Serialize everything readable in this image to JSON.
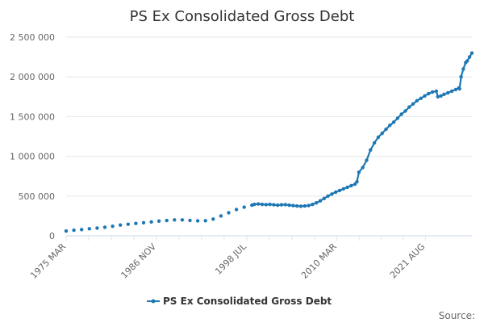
{
  "chart_data": {
    "type": "line",
    "title": "PS Ex Consolidated Gross Debt",
    "xlabel": "",
    "ylabel": "",
    "x_start": "1975 MAR",
    "x_end": "2021 AUG",
    "x_ticks": [
      "1975 MAR",
      "1986 NOV",
      "1998 JUL",
      "2010 MAR",
      "2021 AUG"
    ],
    "y_ticks": [
      "0",
      "500 000",
      "1 000 000",
      "1 500 000",
      "2 000 000",
      "2 500 000"
    ],
    "ylim": [
      0,
      2500000
    ],
    "grid": true,
    "legend_position": "bottom-center",
    "series": [
      {
        "name": "PS Ex Consolidated Gross Debt",
        "color": "#1f78b4",
        "points": [
          [
            1975.17,
            60000
          ],
          [
            1976.17,
            70000
          ],
          [
            1977.17,
            78000
          ],
          [
            1978.17,
            88000
          ],
          [
            1979.17,
            98000
          ],
          [
            1980.17,
            108000
          ],
          [
            1981.17,
            120000
          ],
          [
            1982.17,
            135000
          ],
          [
            1983.17,
            145000
          ],
          [
            1984.17,
            155000
          ],
          [
            1985.17,
            165000
          ],
          [
            1986.17,
            175000
          ],
          [
            1987.17,
            185000
          ],
          [
            1988.17,
            192000
          ],
          [
            1989.17,
            200000
          ],
          [
            1990.17,
            200000
          ],
          [
            1991.17,
            193000
          ],
          [
            1992.17,
            188000
          ],
          [
            1993.17,
            190000
          ],
          [
            1994.17,
            210000
          ],
          [
            1995.17,
            250000
          ],
          [
            1996.17,
            290000
          ],
          [
            1997.17,
            330000
          ],
          [
            1998.17,
            360000
          ],
          [
            1999.17,
            385000
          ],
          [
            1999.5,
            395000
          ],
          [
            2000.0,
            400000
          ],
          [
            2000.5,
            395000
          ],
          [
            2001.0,
            392000
          ],
          [
            2001.5,
            395000
          ],
          [
            2002.0,
            390000
          ],
          [
            2002.5,
            385000
          ],
          [
            2003.0,
            390000
          ],
          [
            2003.5,
            392000
          ],
          [
            2004.0,
            385000
          ],
          [
            2004.5,
            380000
          ],
          [
            2005.0,
            375000
          ],
          [
            2005.5,
            372000
          ],
          [
            2006.0,
            375000
          ],
          [
            2006.5,
            380000
          ],
          [
            2007.0,
            395000
          ],
          [
            2007.5,
            415000
          ],
          [
            2008.0,
            440000
          ],
          [
            2008.5,
            470000
          ],
          [
            2009.0,
            500000
          ],
          [
            2009.5,
            525000
          ],
          [
            2010.0,
            550000
          ],
          [
            2010.5,
            570000
          ],
          [
            2011.0,
            590000
          ],
          [
            2011.5,
            610000
          ],
          [
            2012.0,
            630000
          ],
          [
            2012.5,
            650000
          ],
          [
            2012.75,
            680000
          ],
          [
            2013.0,
            800000
          ],
          [
            2013.5,
            860000
          ],
          [
            2014.0,
            950000
          ],
          [
            2014.5,
            1080000
          ],
          [
            2015.0,
            1170000
          ],
          [
            2015.5,
            1240000
          ],
          [
            2016.0,
            1290000
          ],
          [
            2016.5,
            1340000
          ],
          [
            2017.0,
            1390000
          ],
          [
            2017.5,
            1430000
          ],
          [
            2018.0,
            1480000
          ],
          [
            2018.5,
            1530000
          ],
          [
            2019.0,
            1570000
          ],
          [
            2019.5,
            1620000
          ],
          [
            2020.0,
            1660000
          ],
          [
            2020.5,
            1700000
          ],
          [
            2021.0,
            1730000
          ],
          [
            2021.5,
            1760000
          ],
          [
            2022.0,
            1790000
          ],
          [
            2022.5,
            1810000
          ],
          [
            2023.0,
            1820000
          ],
          [
            2023.2,
            1750000
          ],
          [
            2023.6,
            1760000
          ],
          [
            2024.0,
            1780000
          ],
          [
            2024.5,
            1800000
          ],
          [
            2025.0,
            1820000
          ],
          [
            2025.5,
            1840000
          ],
          [
            2025.9,
            1860000
          ],
          [
            2026.0,
            1850000
          ],
          [
            2026.2,
            2000000
          ],
          [
            2026.5,
            2100000
          ],
          [
            2026.8,
            2180000
          ],
          [
            2027.0,
            2200000
          ],
          [
            2027.3,
            2250000
          ],
          [
            2027.6,
            2300000
          ]
        ]
      }
    ]
  },
  "source_label": "Source:"
}
